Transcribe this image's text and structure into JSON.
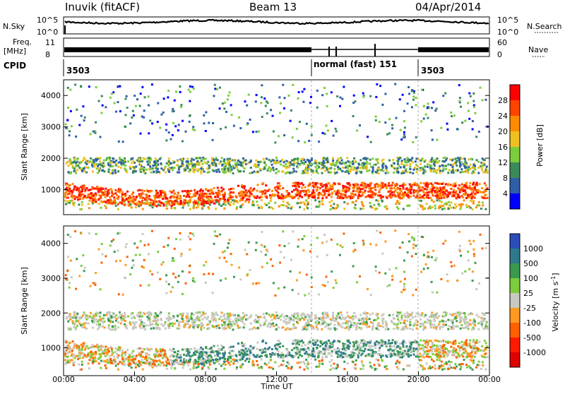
{
  "header": {
    "title": "Inuvik (fitACF)",
    "beam": "Beam 13",
    "date": "04/Apr/2014"
  },
  "top_panels": {
    "nsky_label": "N.Sky",
    "nsky_ticks": [
      "10^5",
      "10^0"
    ],
    "nsearch_label": "N.Search",
    "nsearch_ticks": [
      "10^5",
      "10^0"
    ],
    "freq_label": "Freq.",
    "freq_unit": "[MHz]",
    "freq_ticks": [
      "11",
      "8"
    ],
    "nave_label": "Nave",
    "nave_ticks": [
      "60",
      "0"
    ],
    "cpid_label": "CPID",
    "cpid_segments": [
      {
        "start": 0,
        "end": 14,
        "label": "3503"
      },
      {
        "start": 14,
        "end": 20.3,
        "label": "normal (fast) 151"
      },
      {
        "start": 20.3,
        "end": 24,
        "label": "3503"
      }
    ]
  },
  "chart_data": [
    {
      "type": "heatmap",
      "panel": "power",
      "ylabel": "Slant Range [km]",
      "xlim": [
        0,
        24
      ],
      "ylim": [
        200,
        4500
      ],
      "yticks": [
        "1000",
        "2000",
        "3000",
        "4000"
      ],
      "colorbar_label": "Power [dB]",
      "colorbar_ticks": [
        "4",
        "8",
        "12",
        "16",
        "20",
        "24",
        "28"
      ],
      "colors": [
        "#0000ff",
        "#2e5fa8",
        "#3a8a5a",
        "#7ccd3c",
        "#f0c020",
        "#ff8c00",
        "#ff4400",
        "#ff0000"
      ]
    },
    {
      "type": "heatmap",
      "panel": "velocity",
      "ylabel": "Slant Range [km]",
      "xlabel": "Time UT",
      "xlim": [
        0,
        24
      ],
      "ylim": [
        200,
        4500
      ],
      "xticks": [
        "00:00",
        "04:00",
        "08:00",
        "12:00",
        "16:00",
        "20:00",
        "00:00"
      ],
      "yticks": [
        "1000",
        "2000",
        "3000",
        "4000"
      ],
      "colorbar_label": "Velocity [m s",
      "colorbar_label_sup": "-1",
      "colorbar_label_close": "]",
      "colorbar_ticks": [
        "1000",
        "500",
        "100",
        "25",
        "-25",
        "-100",
        "-500",
        "-1000"
      ],
      "colors": [
        "#2a4db8",
        "#2e7a8c",
        "#3a9a50",
        "#7ccd3c",
        "#c8c8c0",
        "#ff9a20",
        "#ff6000",
        "#ff1a00",
        "#e00000"
      ]
    }
  ]
}
